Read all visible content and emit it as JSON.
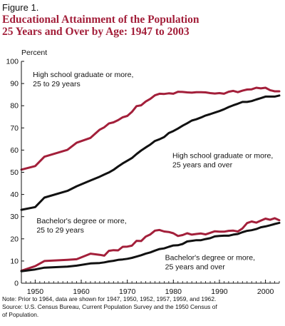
{
  "figure_label": "Figure 1.",
  "chart_data": {
    "type": "line",
    "title": "Educational Attainment of the Population\n25 Years and Over by Age:  1947 to 2003",
    "ylabel": "Percent",
    "xlim": [
      1947,
      2003
    ],
    "ylim": [
      0,
      100
    ],
    "xticks": [
      1950,
      1960,
      1970,
      1980,
      1990,
      2000
    ],
    "yticks": [
      0,
      10,
      20,
      30,
      40,
      50,
      60,
      70,
      80,
      90,
      100
    ],
    "grid": false,
    "colors": {
      "young": "#a31f3a",
      "all": "#111111"
    },
    "series": [
      {
        "name": "High school graduate or more,\n25 to 29 years",
        "color_role": "young",
        "x": [
          1947,
          1950,
          1952,
          1957,
          1959,
          1962,
          1964,
          1965,
          1966,
          1967,
          1968,
          1969,
          1970,
          1971,
          1972,
          1973,
          1974,
          1975,
          1976,
          1977,
          1978,
          1979,
          1980,
          1981,
          1982,
          1983,
          1984,
          1985,
          1986,
          1987,
          1988,
          1989,
          1990,
          1991,
          1992,
          1993,
          1994,
          1995,
          1996,
          1997,
          1998,
          1999,
          2000,
          2001,
          2002,
          2003
        ],
        "y": [
          51.2,
          52.8,
          57.0,
          60.1,
          63.3,
          65.5,
          69.2,
          70.3,
          72.0,
          72.5,
          73.5,
          74.8,
          75.4,
          77.2,
          79.8,
          80.2,
          81.9,
          83.1,
          84.7,
          85.4,
          85.3,
          85.6,
          85.4,
          86.3,
          86.2,
          86.0,
          85.9,
          86.1,
          86.1,
          86.0,
          85.7,
          85.5,
          85.7,
          85.4,
          86.3,
          86.7,
          86.1,
          86.8,
          87.3,
          87.4,
          88.1,
          87.8,
          88.1,
          87.0,
          86.5,
          86.5
        ]
      },
      {
        "name": "High school graduate or more,\n25 years and over",
        "color_role": "all",
        "x": [
          1947,
          1950,
          1952,
          1957,
          1959,
          1962,
          1964,
          1965,
          1966,
          1967,
          1968,
          1969,
          1970,
          1971,
          1972,
          1973,
          1974,
          1975,
          1976,
          1977,
          1978,
          1979,
          1980,
          1981,
          1982,
          1983,
          1984,
          1985,
          1986,
          1987,
          1988,
          1989,
          1990,
          1991,
          1992,
          1993,
          1994,
          1995,
          1996,
          1997,
          1998,
          1999,
          2000,
          2001,
          2002,
          2003
        ],
        "y": [
          33.1,
          34.3,
          38.6,
          41.6,
          43.7,
          46.3,
          48.0,
          49.0,
          49.9,
          51.1,
          52.6,
          54.0,
          55.2,
          56.4,
          58.2,
          59.8,
          61.2,
          62.5,
          64.1,
          64.9,
          65.9,
          67.7,
          68.6,
          69.7,
          71.0,
          72.1,
          73.3,
          73.9,
          74.7,
          75.6,
          76.2,
          76.9,
          77.6,
          78.4,
          79.4,
          80.2,
          80.9,
          81.7,
          81.7,
          82.1,
          82.8,
          83.4,
          84.1,
          84.1,
          84.1,
          84.6
        ]
      },
      {
        "name": "Bachelor's degree or more,\n25 to 29 years",
        "color_role": "young",
        "x": [
          1947,
          1950,
          1952,
          1957,
          1959,
          1962,
          1964,
          1965,
          1966,
          1967,
          1968,
          1969,
          1970,
          1971,
          1972,
          1973,
          1974,
          1975,
          1976,
          1977,
          1978,
          1979,
          1980,
          1981,
          1982,
          1983,
          1984,
          1985,
          1986,
          1987,
          1988,
          1989,
          1990,
          1991,
          1992,
          1993,
          1994,
          1995,
          1996,
          1997,
          1998,
          1999,
          2000,
          2001,
          2002,
          2003
        ],
        "y": [
          5.6,
          7.7,
          10.0,
          10.5,
          10.8,
          13.3,
          12.8,
          12.4,
          14.6,
          14.9,
          14.8,
          16.4,
          16.5,
          16.9,
          19.1,
          19.0,
          21.0,
          22.0,
          23.7,
          24.0,
          23.3,
          23.1,
          22.5,
          21.3,
          21.7,
          22.5,
          21.9,
          22.2,
          22.4,
          22.0,
          22.7,
          23.4,
          23.2,
          23.2,
          23.6,
          23.7,
          23.3,
          24.7,
          27.1,
          27.8,
          27.3,
          28.2,
          29.1,
          28.6,
          29.3,
          28.4
        ]
      },
      {
        "name": "Bachelor's degree or more,\n25 years and over",
        "color_role": "all",
        "x": [
          1947,
          1950,
          1952,
          1957,
          1959,
          1962,
          1964,
          1965,
          1966,
          1967,
          1968,
          1969,
          1970,
          1971,
          1972,
          1973,
          1974,
          1975,
          1976,
          1977,
          1978,
          1979,
          1980,
          1981,
          1982,
          1983,
          1984,
          1985,
          1986,
          1987,
          1988,
          1989,
          1990,
          1991,
          1992,
          1993,
          1994,
          1995,
          1996,
          1997,
          1998,
          1999,
          2000,
          2001,
          2002,
          2003
        ],
        "y": [
          5.4,
          6.2,
          7.0,
          7.5,
          7.9,
          8.9,
          9.1,
          9.4,
          9.8,
          10.1,
          10.5,
          10.7,
          11.0,
          11.4,
          12.0,
          12.6,
          13.3,
          13.9,
          14.7,
          15.4,
          15.7,
          16.4,
          17.0,
          17.1,
          17.7,
          18.8,
          19.1,
          19.4,
          19.4,
          19.9,
          20.3,
          21.1,
          21.3,
          21.4,
          21.4,
          21.9,
          22.2,
          23.0,
          23.6,
          23.9,
          24.4,
          25.2,
          25.6,
          26.1,
          26.7,
          27.2
        ]
      }
    ],
    "annotations": [
      "High school graduate or more,\n25 to 29 years",
      "High school graduate or more,\n25 years and over",
      "Bachelor's degree or more,\n25 to 29 years",
      "Bachelor's degree or more,\n25 years and over"
    ]
  },
  "note": "Note:  Prior to 1964, data are shown for 1947, 1950, 1952, 1957, 1959, and 1962.\nSource:  U.S. Census Bureau, Current Population Survey and the 1950 Census of\nof Population."
}
